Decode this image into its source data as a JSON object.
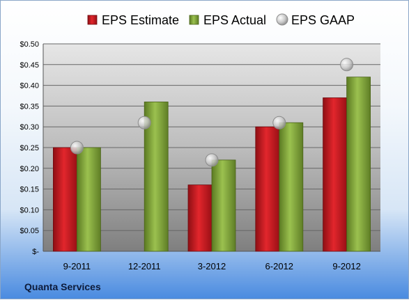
{
  "company": "Quanta Services",
  "chart_data": {
    "type": "bar",
    "categories": [
      "9-2011",
      "12-2011",
      "3-2012",
      "6-2012",
      "9-2012"
    ],
    "series": [
      {
        "name": "EPS Estimate",
        "type": "bar",
        "color": "#c8161d",
        "values": [
          0.25,
          null,
          0.16,
          0.3,
          0.37
        ]
      },
      {
        "name": "EPS Actual",
        "type": "bar",
        "color": "#7fa33a",
        "values": [
          0.25,
          0.36,
          0.22,
          0.31,
          0.42
        ]
      },
      {
        "name": "EPS GAAP",
        "type": "scatter",
        "color": "#b0b0b0",
        "values": [
          0.25,
          0.31,
          0.22,
          0.31,
          0.45
        ]
      }
    ],
    "ylim": [
      0,
      0.5
    ],
    "yticks": [
      0,
      0.05,
      0.1,
      0.15,
      0.2,
      0.25,
      0.3,
      0.35,
      0.4,
      0.45,
      0.5
    ],
    "ytick_labels": [
      "$-",
      "$0.05",
      "$0.10",
      "$0.15",
      "$0.20",
      "$0.25",
      "$0.30",
      "$0.35",
      "$0.40",
      "$0.45",
      "$0.50"
    ],
    "grid": true,
    "legend_position": "top-center"
  }
}
